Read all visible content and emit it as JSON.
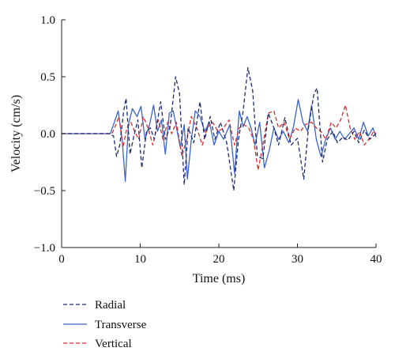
{
  "chart_data": {
    "type": "line",
    "xlabel": "Time (ms)",
    "ylabel": "Velocity (cm/s)",
    "xlim": [
      0,
      40
    ],
    "ylim": [
      -1.0,
      1.0
    ],
    "x_ticks": [
      "0",
      "10",
      "20",
      "30",
      "40"
    ],
    "y_ticks": [
      "1.0",
      "0.5",
      "0.0",
      "−0.5",
      "−1.0"
    ],
    "grid": false,
    "legend_position": "bottom-left",
    "series": [
      {
        "name": "Radial",
        "color": "#1f2a6e",
        "style": "dashed",
        "points": [
          [
            0,
            0
          ],
          [
            6,
            0
          ],
          [
            6.6,
            -0.02
          ],
          [
            7,
            -0.2
          ],
          [
            7.4,
            -0.1
          ],
          [
            7.9,
            0.2
          ],
          [
            8.2,
            0.31
          ],
          [
            8.7,
            -0.18
          ],
          [
            9.2,
            -0.02
          ],
          [
            9.7,
            0.12
          ],
          [
            10.2,
            -0.3
          ],
          [
            10.8,
            0.02
          ],
          [
            11.3,
            0.05
          ],
          [
            11.8,
            -0.05
          ],
          [
            12.6,
            0.28
          ],
          [
            13.2,
            -0.05
          ],
          [
            13.8,
            0.06
          ],
          [
            14.5,
            0.5
          ],
          [
            15,
            0.35
          ],
          [
            15.6,
            -0.45
          ],
          [
            16.1,
            0.05
          ],
          [
            16.8,
            -0.08
          ],
          [
            17.6,
            0.28
          ],
          [
            18.2,
            -0.05
          ],
          [
            18.9,
            0.15
          ],
          [
            19.5,
            -0.05
          ],
          [
            20.2,
            0.1
          ],
          [
            21,
            -0.08
          ],
          [
            21.9,
            -0.5
          ],
          [
            22.5,
            -0.05
          ],
          [
            23.1,
            0.2
          ],
          [
            23.7,
            0.58
          ],
          [
            24.3,
            0.38
          ],
          [
            24.9,
            -0.2
          ],
          [
            25.6,
            -0.22
          ],
          [
            26.3,
            0.18
          ],
          [
            27,
            0.05
          ],
          [
            27.6,
            -0.1
          ],
          [
            28.4,
            0.14
          ],
          [
            29.2,
            -0.1
          ],
          [
            30,
            -0.04
          ],
          [
            30.8,
            -0.4
          ],
          [
            31.4,
            0.05
          ],
          [
            32.1,
            0.35
          ],
          [
            32.5,
            0.4
          ],
          [
            33.2,
            -0.25
          ],
          [
            33.8,
            -0.05
          ],
          [
            34.5,
            0.02
          ],
          [
            35.1,
            -0.08
          ],
          [
            35.8,
            -0.03
          ],
          [
            36.4,
            -0.06
          ],
          [
            37.2,
            0.02
          ],
          [
            37.8,
            -0.08
          ],
          [
            38.5,
            0.03
          ],
          [
            39.2,
            -0.05
          ],
          [
            40,
            0
          ]
        ]
      },
      {
        "name": "Transverse",
        "color": "#3a64c8",
        "style": "solid",
        "points": [
          [
            0,
            0
          ],
          [
            6.2,
            0
          ],
          [
            6.8,
            0.12
          ],
          [
            7.2,
            0.2
          ],
          [
            7.7,
            -0.05
          ],
          [
            8.1,
            -0.42
          ],
          [
            8.5,
            0.08
          ],
          [
            9,
            0.22
          ],
          [
            9.6,
            0.15
          ],
          [
            10.1,
            0.24
          ],
          [
            10.6,
            -0.05
          ],
          [
            11.2,
            0.08
          ],
          [
            11.7,
            0.25
          ],
          [
            12.2,
            0.02
          ],
          [
            12.7,
            0.12
          ],
          [
            13.2,
            -0.18
          ],
          [
            13.7,
            0.18
          ],
          [
            14.2,
            0.2
          ],
          [
            14.7,
            0.02
          ],
          [
            15.1,
            -0.12
          ],
          [
            15.6,
            0.08
          ],
          [
            16,
            -0.4
          ],
          [
            16.5,
            -0.05
          ],
          [
            17,
            0.2
          ],
          [
            17.6,
            0.15
          ],
          [
            18.2,
            0.02
          ],
          [
            18.8,
            0.1
          ],
          [
            19.4,
            -0.1
          ],
          [
            20,
            0.02
          ],
          [
            20.6,
            -0.05
          ],
          [
            21.4,
            0.08
          ],
          [
            22,
            -0.35
          ],
          [
            22.6,
            0.2
          ],
          [
            23.1,
            0.06
          ],
          [
            23.6,
            0.15
          ],
          [
            24.1,
            0.05
          ],
          [
            24.6,
            -0.1
          ],
          [
            25.2,
            0.1
          ],
          [
            25.8,
            -0.3
          ],
          [
            26.4,
            -0.15
          ],
          [
            27,
            0.05
          ],
          [
            27.6,
            -0.05
          ],
          [
            28.2,
            0.02
          ],
          [
            28.9,
            -0.08
          ],
          [
            29.5,
            0.06
          ],
          [
            30.1,
            0.3
          ],
          [
            30.7,
            0.1
          ],
          [
            31.3,
            0.02
          ],
          [
            31.8,
            0.25
          ],
          [
            32.4,
            -0.05
          ],
          [
            33,
            -0.2
          ],
          [
            33.6,
            -0.05
          ],
          [
            34.2,
            0.05
          ],
          [
            34.8,
            -0.05
          ],
          [
            35.4,
            0.02
          ],
          [
            36,
            -0.05
          ],
          [
            36.6,
            0.0
          ],
          [
            37.2,
            0.05
          ],
          [
            37.8,
            -0.05
          ],
          [
            38.4,
            0.1
          ],
          [
            39,
            -0.02
          ],
          [
            39.6,
            0.05
          ],
          [
            40,
            -0.03
          ]
        ]
      },
      {
        "name": "Vertical",
        "color": "#d62f2f",
        "style": "dashed",
        "points": [
          [
            0,
            0
          ],
          [
            6.4,
            0
          ],
          [
            6.9,
            0.08
          ],
          [
            7.3,
            0.15
          ],
          [
            7.8,
            -0.12
          ],
          [
            8.3,
            0.05
          ],
          [
            8.8,
            0.1
          ],
          [
            9.3,
            0.02
          ],
          [
            9.8,
            -0.05
          ],
          [
            10.4,
            0.15
          ],
          [
            11,
            0.05
          ],
          [
            11.6,
            -0.1
          ],
          [
            12.3,
            0.12
          ],
          [
            12.9,
            -0.05
          ],
          [
            13.5,
            0.1
          ],
          [
            14,
            0.0
          ],
          [
            14.6,
            0.1
          ],
          [
            15.3,
            -0.2
          ],
          [
            15.9,
            -0.05
          ],
          [
            16.5,
            0.15
          ],
          [
            17.2,
            0.05
          ],
          [
            17.9,
            -0.1
          ],
          [
            18.5,
            0.05
          ],
          [
            19.2,
            0.1
          ],
          [
            19.9,
            0.02
          ],
          [
            20.6,
            0.05
          ],
          [
            21.3,
            0.12
          ],
          [
            22,
            -0.1
          ],
          [
            22.6,
            0.05
          ],
          [
            23.2,
            0.08
          ],
          [
            23.8,
            0.05
          ],
          [
            24.4,
            -0.05
          ],
          [
            25,
            -0.32
          ],
          [
            25.6,
            -0.1
          ],
          [
            26.3,
            0.18
          ],
          [
            27,
            0.2
          ],
          [
            27.6,
            0.05
          ],
          [
            28.3,
            0.1
          ],
          [
            29,
            -0.05
          ],
          [
            29.7,
            0.05
          ],
          [
            30.4,
            0.02
          ],
          [
            31,
            0.08
          ],
          [
            31.8,
            0.1
          ],
          [
            32.4,
            0.05
          ],
          [
            33,
            0.02
          ],
          [
            33.6,
            -0.05
          ],
          [
            34.3,
            0.1
          ],
          [
            34.9,
            0.05
          ],
          [
            35.5,
            0.12
          ],
          [
            36.1,
            0.25
          ],
          [
            36.7,
            0.05
          ],
          [
            37.3,
            -0.05
          ],
          [
            37.9,
            0.02
          ],
          [
            38.5,
            -0.1
          ],
          [
            39.1,
            -0.05
          ],
          [
            39.7,
            0.02
          ],
          [
            40,
            0.0
          ]
        ]
      }
    ]
  }
}
